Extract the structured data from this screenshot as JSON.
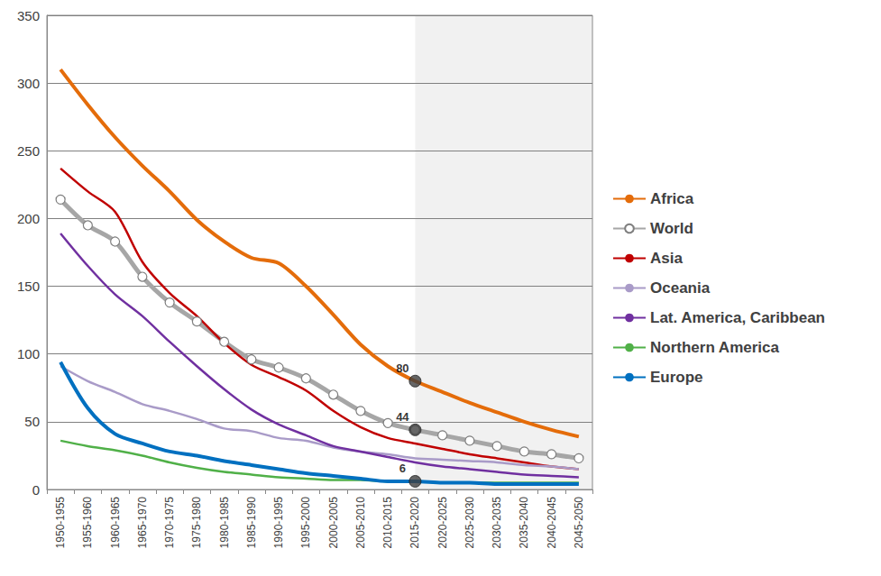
{
  "chart_data": {
    "type": "line",
    "categories": [
      "1950-1955",
      "1955-1960",
      "1960-1965",
      "1965-1970",
      "1970-1975",
      "1975-1980",
      "1980-1985",
      "1985-1990",
      "1990-1995",
      "1995-2000",
      "2000-2005",
      "2005-2010",
      "2010-2015",
      "2015-2020",
      "2020-2025",
      "2025-2030",
      "2030-2035",
      "2035-2040",
      "2040-2045",
      "2045-2050"
    ],
    "series": [
      {
        "name": "Africa",
        "color": "#E46C0A",
        "values": [
          310,
          284,
          260,
          239,
          220,
          199,
          183,
          171,
          167,
          150,
          129,
          107,
          91,
          80,
          72,
          64,
          57,
          50,
          44,
          39
        ]
      },
      {
        "name": "World",
        "color": "#A6A6A6",
        "marker": "circle",
        "values": [
          214,
          195,
          183,
          157,
          138,
          124,
          109,
          96,
          90,
          82,
          70,
          58,
          49,
          44,
          40,
          36,
          32,
          28,
          26,
          23
        ]
      },
      {
        "name": "Asia",
        "color": "#C00000",
        "values": [
          237,
          220,
          205,
          168,
          145,
          128,
          108,
          92,
          83,
          73,
          58,
          46,
          38,
          34,
          30,
          26,
          23,
          20,
          17,
          15
        ]
      },
      {
        "name": "Oceania",
        "color": "#A99BC8",
        "values": [
          91,
          80,
          72,
          63,
          58,
          52,
          45,
          43,
          38,
          36,
          31,
          28,
          26,
          23,
          22,
          21,
          20,
          18,
          17,
          15
        ]
      },
      {
        "name": "Lat. America, Caribbean",
        "color": "#7030A0",
        "values": [
          189,
          165,
          144,
          128,
          109,
          91,
          74,
          59,
          48,
          40,
          32,
          28,
          24,
          20,
          17,
          15,
          13,
          11,
          10,
          9
        ]
      },
      {
        "name": "Northern America",
        "color": "#50B048",
        "values": [
          36,
          32,
          29,
          25,
          20,
          16,
          13,
          11,
          9,
          8,
          7,
          7,
          6,
          6,
          5,
          5,
          5,
          5,
          5,
          5
        ]
      },
      {
        "name": "Europe",
        "color": "#0070C0",
        "values": [
          94,
          60,
          41,
          34,
          28,
          25,
          21,
          18,
          15,
          12,
          10,
          8,
          6,
          6,
          5,
          5,
          4,
          4,
          4,
          4
        ]
      }
    ],
    "annotations": [
      {
        "text": "80",
        "x": "2015-2020",
        "y": 80
      },
      {
        "text": "44",
        "x": "2015-2020",
        "y": 44
      },
      {
        "text": "6",
        "x": "2015-2020",
        "y": 6
      }
    ],
    "ylim": [
      0,
      350
    ],
    "yticks": [
      0,
      50,
      100,
      150,
      200,
      250,
      300,
      350
    ],
    "grid": true,
    "legend": "right"
  }
}
